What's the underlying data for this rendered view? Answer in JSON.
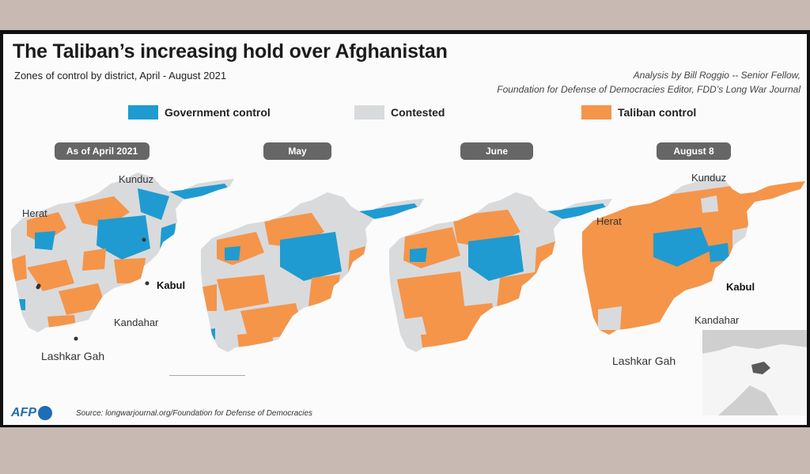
{
  "title": "The Taliban’s increasing hold over Afghanistan",
  "subtitle": "Zones of control by district, April - August 2021",
  "credit": {
    "line1": "Analysis by Bill Roggio -- Senior Fellow,",
    "line2": "Foundation for Defense of Democracies Editor, FDD’s Long War Journal"
  },
  "colors": {
    "government": "#1f9bd1",
    "contested": "#d9dadc",
    "taliban": "#f4954a"
  },
  "legend": [
    {
      "label": "Government control",
      "key": "government"
    },
    {
      "label": "Contested",
      "key": "contested"
    },
    {
      "label": "Taliban control",
      "key": "taliban"
    }
  ],
  "panels": [
    {
      "label": "As of April 2021"
    },
    {
      "label": "May"
    },
    {
      "label": "June"
    },
    {
      "label": "August 8"
    }
  ],
  "cities": {
    "kunduz": "Kunduz",
    "herat": "Herat",
    "kabul": "Kabul",
    "kandahar": "Kandahar",
    "lashkar_gah": "Lashkar Gah"
  },
  "logo": "AFP",
  "source": "Source: longwarjournal.org/Foundation for Defense of Democracies"
}
